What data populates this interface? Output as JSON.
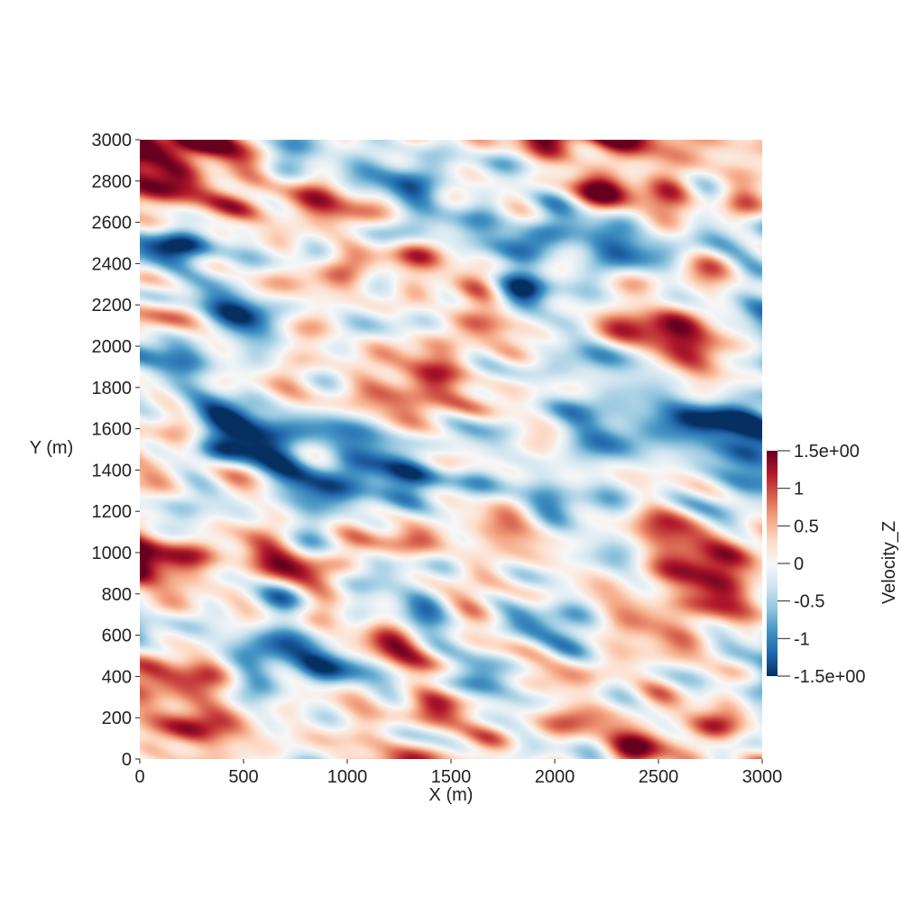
{
  "chart_data": {
    "type": "heatmap",
    "title": "",
    "xlabel": "X (m)",
    "ylabel": "Y (m)",
    "xlim": [
      0,
      3000
    ],
    "ylim": [
      0,
      3000
    ],
    "x_ticks": [
      "0",
      "500",
      "1000",
      "1500",
      "2000",
      "2500",
      "3000"
    ],
    "y_ticks": [
      "0",
      "200",
      "400",
      "600",
      "800",
      "1000",
      "1200",
      "1400",
      "1600",
      "1800",
      "2000",
      "2200",
      "2400",
      "2600",
      "2800",
      "3000"
    ],
    "x_tick_values": [
      0,
      500,
      1000,
      1500,
      2000,
      2500,
      3000
    ],
    "y_tick_values": [
      0,
      200,
      400,
      600,
      800,
      1000,
      1200,
      1400,
      1600,
      1800,
      2000,
      2200,
      2400,
      2600,
      2800,
      3000
    ],
    "field": "Velocity_Z",
    "colorbar": {
      "title": "Velocity_Z",
      "range": [
        -1.5,
        1.5
      ],
      "ticks": [
        {
          "value": 1.5,
          "label": "1.5e+00"
        },
        {
          "value": 1,
          "label": "1"
        },
        {
          "value": 0.5,
          "label": "0.5"
        },
        {
          "value": 0,
          "label": "0"
        },
        {
          "value": -0.5,
          "label": "-0.5"
        },
        {
          "value": -1,
          "label": "-1"
        },
        {
          "value": -1.5,
          "label": "-1.5e+00"
        }
      ],
      "colormap": [
        "#67001f",
        "#b2182b",
        "#d6604d",
        "#f4a582",
        "#fddbc7",
        "#f7f7f7",
        "#d1e5f0",
        "#92c5de",
        "#4393c3",
        "#2166ac",
        "#053061"
      ]
    }
  }
}
